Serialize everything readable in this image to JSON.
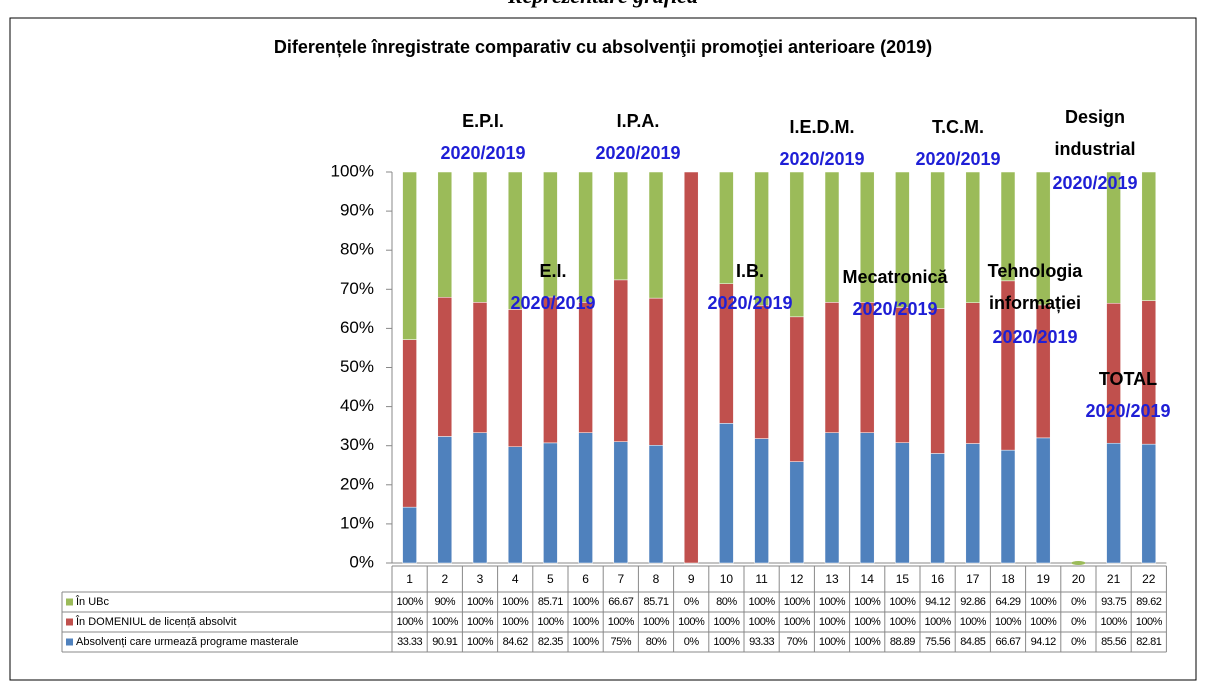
{
  "header": "Reprezentare grafică",
  "chart_data": {
    "type": "bar",
    "stack": "percent",
    "title": "Diferențele înregistrate comparativ cu absolvenţii promoţiei anterioare (2019)",
    "categories": [
      "1",
      "2",
      "3",
      "4",
      "5",
      "6",
      "7",
      "8",
      "9",
      "10",
      "11",
      "12",
      "13",
      "14",
      "15",
      "16",
      "17",
      "18",
      "19",
      "20",
      "21",
      "22"
    ],
    "series": [
      {
        "name": "Absolvenți care urmează programe masterale",
        "color": "#4f81bd",
        "values": [
          33.33,
          90.91,
          100,
          84.62,
          82.35,
          100,
          75,
          80,
          0,
          100,
          93.33,
          70,
          100,
          100,
          88.89,
          75.56,
          84.85,
          66.67,
          94.12,
          0,
          85.56,
          82.81
        ],
        "value_labels": [
          "33.33",
          "90.91",
          "100%",
          "84.62",
          "82.35",
          "100%",
          "75%",
          "80%",
          "0%",
          "100%",
          "93.33",
          "70%",
          "100%",
          "100%",
          "88.89",
          "75.56",
          "84.85",
          "66.67",
          "94.12",
          "0%",
          "85.56",
          "82.81"
        ]
      },
      {
        "name": "În DOMENIUL de licență absolvit",
        "color": "#c0504d",
        "values": [
          100,
          100,
          100,
          100,
          100,
          100,
          100,
          100,
          100,
          100,
          100,
          100,
          100,
          100,
          100,
          100,
          100,
          100,
          100,
          0,
          100,
          100
        ],
        "value_labels": [
          "100%",
          "100%",
          "100%",
          "100%",
          "100%",
          "100%",
          "100%",
          "100%",
          "100%",
          "100%",
          "100%",
          "100%",
          "100%",
          "100%",
          "100%",
          "100%",
          "100%",
          "100%",
          "100%",
          "0%",
          "100%",
          "100%"
        ]
      },
      {
        "name": "În UBc",
        "color": "#9bbb59",
        "values": [
          100,
          90,
          100,
          100,
          85.71,
          100,
          66.67,
          85.71,
          0,
          80,
          100,
          100,
          100,
          100,
          100,
          94.12,
          92.86,
          64.29,
          100,
          0,
          93.75,
          89.62
        ],
        "value_labels": [
          "100%",
          "90%",
          "100%",
          "100%",
          "85.71",
          "100%",
          "66.67",
          "85.71",
          "0%",
          "80%",
          "100%",
          "100%",
          "100%",
          "100%",
          "100%",
          "94.12",
          "92.86",
          "64.29",
          "100%",
          "0%",
          "93.75",
          "89.62"
        ]
      }
    ],
    "ylim": [
      0,
      100
    ],
    "yticks": [
      {
        "value": 0,
        "label": "0%"
      },
      {
        "value": 10,
        "label": "10%"
      },
      {
        "value": 20,
        "label": "20%"
      },
      {
        "value": 30,
        "label": "30%"
      },
      {
        "value": 40,
        "label": "40%"
      },
      {
        "value": 50,
        "label": "50%"
      },
      {
        "value": 60,
        "label": "60%"
      },
      {
        "value": 70,
        "label": "70%"
      },
      {
        "value": 80,
        "label": "80%"
      },
      {
        "value": 90,
        "label": "90%"
      },
      {
        "value": 100,
        "label": "100%"
      }
    ],
    "annotations": [
      {
        "lines": [
          "E.P.I."
        ],
        "sub": "2020/2019"
      },
      {
        "lines": [
          "I.P.A."
        ],
        "sub": "2020/2019"
      },
      {
        "lines": [
          "E.I."
        ],
        "sub": "2020/2019"
      },
      {
        "lines": [
          "I.B."
        ],
        "sub": "2020/2019"
      },
      {
        "lines": [
          "I.E.D.M."
        ],
        "sub": "2020/2019"
      },
      {
        "lines": [
          "Mecatronică"
        ],
        "sub": "2020/2019"
      },
      {
        "lines": [
          "T.C.M."
        ],
        "sub": "2020/2019"
      },
      {
        "lines": [
          "Tehnologia",
          "informației"
        ],
        "sub": "2020/2019"
      },
      {
        "lines": [
          "Design",
          "industrial"
        ],
        "sub": "2020/2019"
      },
      {
        "lines": [
          "TOTAL"
        ],
        "sub": "2020/2019"
      }
    ]
  }
}
